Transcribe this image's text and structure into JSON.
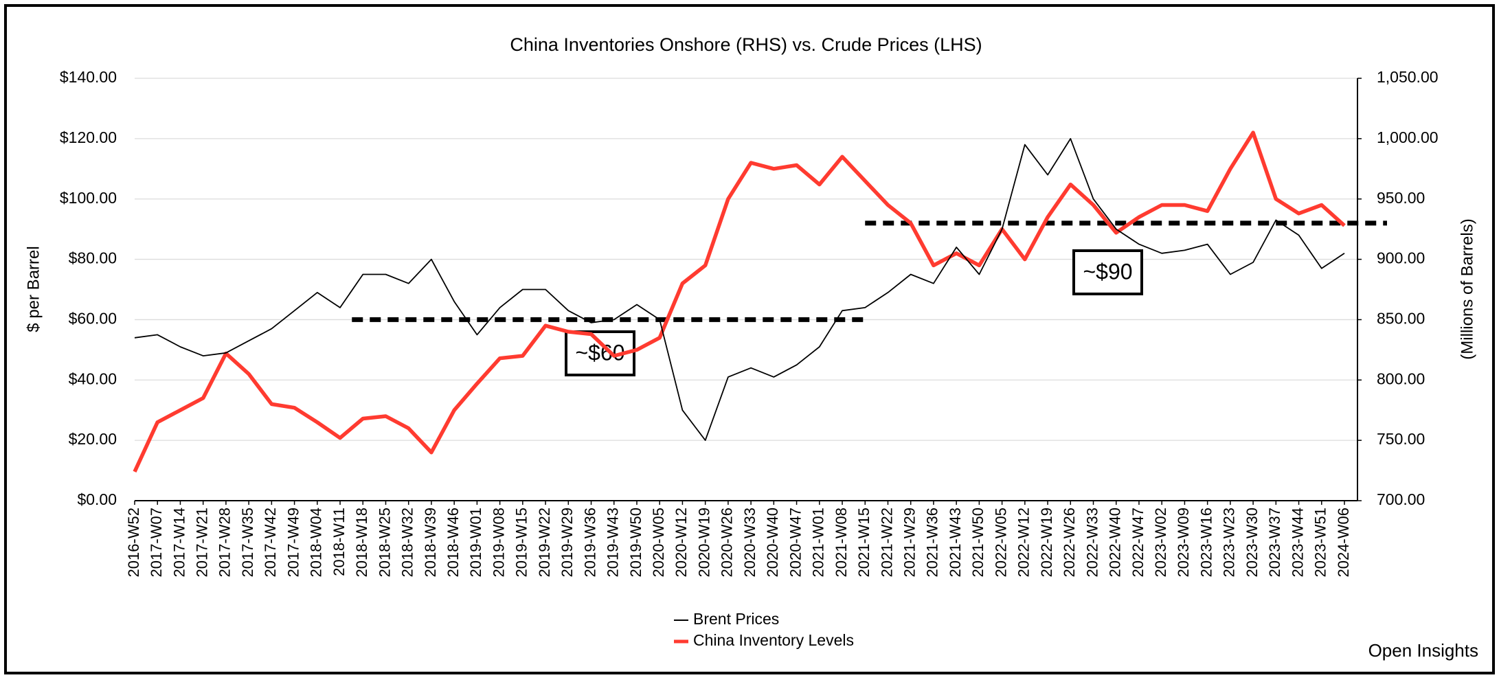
{
  "chart_data": {
    "type": "line",
    "title": "China Inventories Onshore (RHS) vs. Crude Prices (LHS)",
    "y_label": "$ per Barrel",
    "y2_label": "(Millions of Barrels)",
    "watermark": "Open Insights",
    "categories": [
      "2016-W52",
      "2017-W07",
      "2017-W14",
      "2017-W21",
      "2017-W28",
      "2017-W35",
      "2017-W42",
      "2017-W49",
      "2018-W04",
      "2018-W11",
      "2018-W18",
      "2018-W25",
      "2018-W32",
      "2018-W39",
      "2018-W46",
      "2019-W01",
      "2019-W08",
      "2019-W15",
      "2019-W22",
      "2019-W29",
      "2019-W36",
      "2019-W43",
      "2019-W50",
      "2020-W05",
      "2020-W12",
      "2020-W19",
      "2020-W26",
      "2020-W33",
      "2020-W40",
      "2020-W47",
      "2021-W01",
      "2021-W08",
      "2021-W15",
      "2021-W22",
      "2021-W29",
      "2021-W36",
      "2021-W43",
      "2021-W50",
      "2022-W05",
      "2022-W12",
      "2022-W19",
      "2022-W26",
      "2022-W33",
      "2022-W40",
      "2022-W47",
      "2023-W02",
      "2023-W09",
      "2023-W16",
      "2023-W23",
      "2023-W30",
      "2023-W37",
      "2023-W44",
      "2023-W51",
      "2024-W06"
    ],
    "series": [
      {
        "name": "Brent Prices",
        "color": "#000000",
        "axis": "y",
        "values": [
          54,
          55,
          51,
          48,
          49,
          53,
          57,
          63,
          69,
          64,
          75,
          75,
          72,
          80,
          66,
          55,
          64,
          70,
          70,
          63,
          59,
          60,
          65,
          60,
          30,
          20,
          41,
          44,
          41,
          45,
          51,
          63,
          64,
          69,
          75,
          72,
          84,
          75,
          90,
          118,
          108,
          120,
          100,
          90,
          85,
          82,
          83,
          85,
          75,
          79,
          93,
          88,
          77,
          82
        ]
      },
      {
        "name": "China Inventory Levels",
        "color": "#ff3b30",
        "axis": "y2",
        "values": [
          724,
          765,
          775,
          785,
          822,
          805,
          780,
          777,
          765,
          752,
          768,
          770,
          760,
          740,
          775,
          797,
          818,
          820,
          845,
          840,
          838,
          820,
          825,
          835,
          880,
          895,
          950,
          980,
          975,
          978,
          962,
          985,
          965,
          945,
          930,
          895,
          905,
          895,
          925,
          900,
          935,
          962,
          945,
          922,
          935,
          945,
          945,
          940,
          975,
          1005,
          950,
          938,
          945,
          928
        ]
      }
    ],
    "reference_lines": [
      {
        "value": 60,
        "axis": "y",
        "from": "2018-W18",
        "to": "2021-W15",
        "label": "~$60"
      },
      {
        "value": 930,
        "axis": "y2",
        "from": "2021-W15",
        "to": "2024-W06",
        "label": "~$90"
      }
    ],
    "ylim": [
      0,
      140
    ],
    "yticks": [
      {
        "value": 0,
        "label": "$0.00"
      },
      {
        "value": 20,
        "label": "$20.00"
      },
      {
        "value": 40,
        "label": "$40.00"
      },
      {
        "value": 60,
        "label": "$60.00"
      },
      {
        "value": 80,
        "label": "$80.00"
      },
      {
        "value": 100,
        "label": "$100.00"
      },
      {
        "value": 120,
        "label": "$120.00"
      },
      {
        "value": 140,
        "label": "$140.00"
      }
    ],
    "y2lim": [
      700,
      1050
    ],
    "y2ticks": [
      {
        "value": 700,
        "label": "700.00"
      },
      {
        "value": 750,
        "label": "750.00"
      },
      {
        "value": 800,
        "label": "800.00"
      },
      {
        "value": 850,
        "label": "850.00"
      },
      {
        "value": 900,
        "label": "900.00"
      },
      {
        "value": 950,
        "label": "950.00"
      },
      {
        "value": 1000,
        "label": "1,000.00"
      },
      {
        "value": 1050,
        "label": "1,050.00"
      }
    ],
    "grid": true,
    "legend": "bottom"
  }
}
